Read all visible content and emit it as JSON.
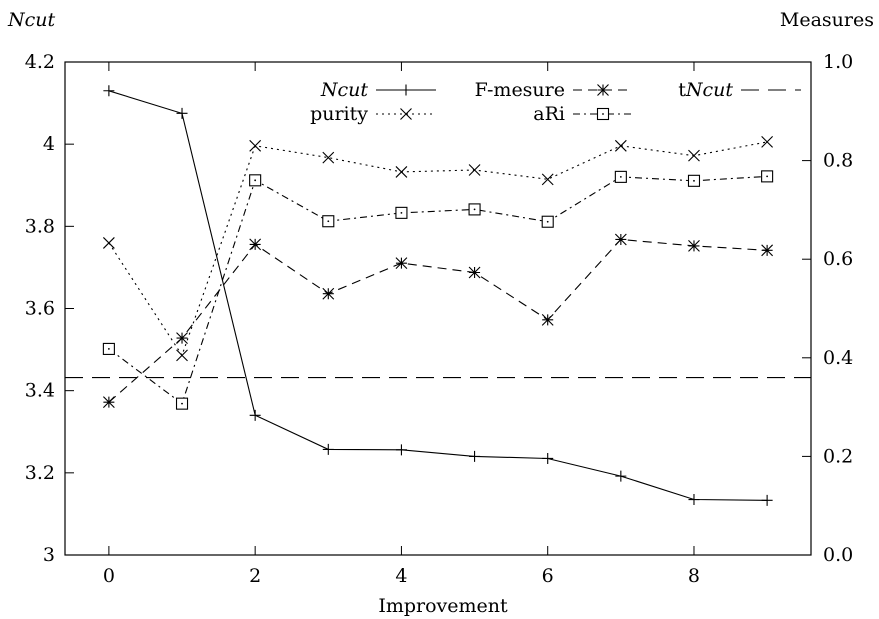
{
  "chart_data": {
    "type": "line",
    "xlabel": "Improvement",
    "ylabel_left": {
      "italic": "Ncut",
      "plain": ""
    },
    "ylabel_right": "Measures",
    "x_ticks": [
      0,
      2,
      4,
      6,
      8
    ],
    "x_tick_labels": [
      "0",
      "2",
      "4",
      "6",
      "8"
    ],
    "xlim": [
      -0.6,
      9.6
    ],
    "y_left_lim": [
      3.0,
      4.2
    ],
    "y_left_ticks": [
      3.0,
      3.2,
      3.4,
      3.6,
      3.8,
      4.0,
      4.2
    ],
    "y_left_tick_labels": [
      "3",
      "3.2",
      "3.4",
      "3.6",
      "3.8",
      "4",
      "4.2"
    ],
    "y_right_lim": [
      0.0,
      1.0
    ],
    "y_right_ticks": [
      0.0,
      0.2,
      0.4,
      0.6,
      0.8,
      1.0
    ],
    "y_right_tick_labels": [
      "0.0",
      "0.2",
      "0.4",
      "0.6",
      "0.8",
      "1.0"
    ],
    "x": [
      0,
      1,
      2,
      3,
      4,
      5,
      6,
      7,
      8,
      9
    ],
    "series": [
      {
        "key": "ncut",
        "name": {
          "italic": "Ncut",
          "plain": ""
        },
        "axis": "left",
        "style": "solid",
        "marker": "plus",
        "values": [
          4.13,
          4.075,
          3.34,
          3.257,
          3.256,
          3.24,
          3.235,
          3.192,
          3.135,
          3.133
        ]
      },
      {
        "key": "fmeasure",
        "name": {
          "italic": "",
          "plain": "F-mesure"
        },
        "axis": "right",
        "style": "longdash",
        "marker": "star",
        "values": [
          0.31,
          0.44,
          0.63,
          0.53,
          0.592,
          0.573,
          0.477,
          0.64,
          0.627,
          0.618
        ]
      },
      {
        "key": "tncut",
        "name": {
          "plain": "t",
          "italic": "Ncut"
        },
        "axis": "left",
        "style": "dashed",
        "marker": "none",
        "constant": 3.432
      },
      {
        "key": "purity",
        "name": {
          "italic": "",
          "plain": "purity"
        },
        "axis": "right",
        "style": "dotted",
        "marker": "cross",
        "values": [
          0.633,
          0.405,
          0.83,
          0.806,
          0.777,
          0.781,
          0.762,
          0.83,
          0.81,
          0.838
        ]
      },
      {
        "key": "ari",
        "name": {
          "italic": "",
          "plain": "aRi"
        },
        "axis": "right",
        "style": "dashdot",
        "marker": "square",
        "values": [
          0.418,
          0.307,
          0.76,
          0.677,
          0.694,
          0.701,
          0.676,
          0.767,
          0.759,
          0.768
        ]
      }
    ],
    "legend_position": "top"
  }
}
